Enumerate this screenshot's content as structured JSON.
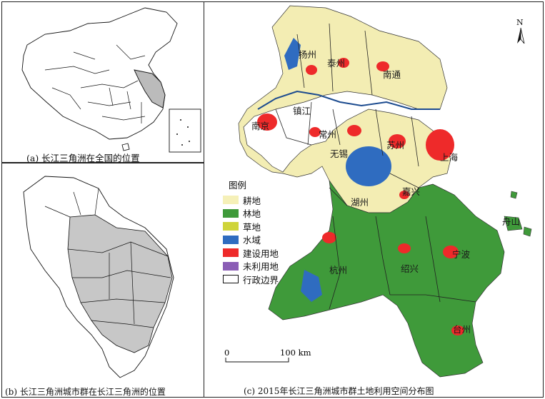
{
  "panel_a": {
    "caption": "(a) 长江三角洲在全国的位置"
  },
  "panel_b": {
    "caption": "(b) 长江三角洲城市群在长江三角洲的位置"
  },
  "panel_c": {
    "caption": "(c) 2015年长江三角洲城市群土地利用空间分布图",
    "north_label": "N",
    "scale": {
      "zero": "0",
      "max": "100 km"
    },
    "legend": {
      "title": "图例",
      "items": [
        {
          "label": "耕地",
          "color": "#f5f0b8"
        },
        {
          "label": "林地",
          "color": "#3f9a3a"
        },
        {
          "label": "草地",
          "color": "#cfd43a"
        },
        {
          "label": "水域",
          "color": "#2f6cc0"
        },
        {
          "label": "建设用地",
          "color": "#ee2a2a"
        },
        {
          "label": "未利用地",
          "color": "#8a5db5"
        },
        {
          "label": "行政边界",
          "color": "#ffffff"
        }
      ]
    },
    "cities": {
      "yangzhou": "扬州",
      "taizhou_js": "泰州",
      "nantong": "南通",
      "zhenjiang": "镇江",
      "nanjing": "南京",
      "changzhou": "常州",
      "wuxi": "无锡",
      "suzhou": "苏州",
      "shanghai": "上海",
      "jiaxing": "嘉兴",
      "huzhou": "湖州",
      "zhoushan": "舟山",
      "hangzhou": "杭州",
      "shaoxing": "绍兴",
      "ningbo": "宁波",
      "taizhou_zj": "台州"
    }
  }
}
